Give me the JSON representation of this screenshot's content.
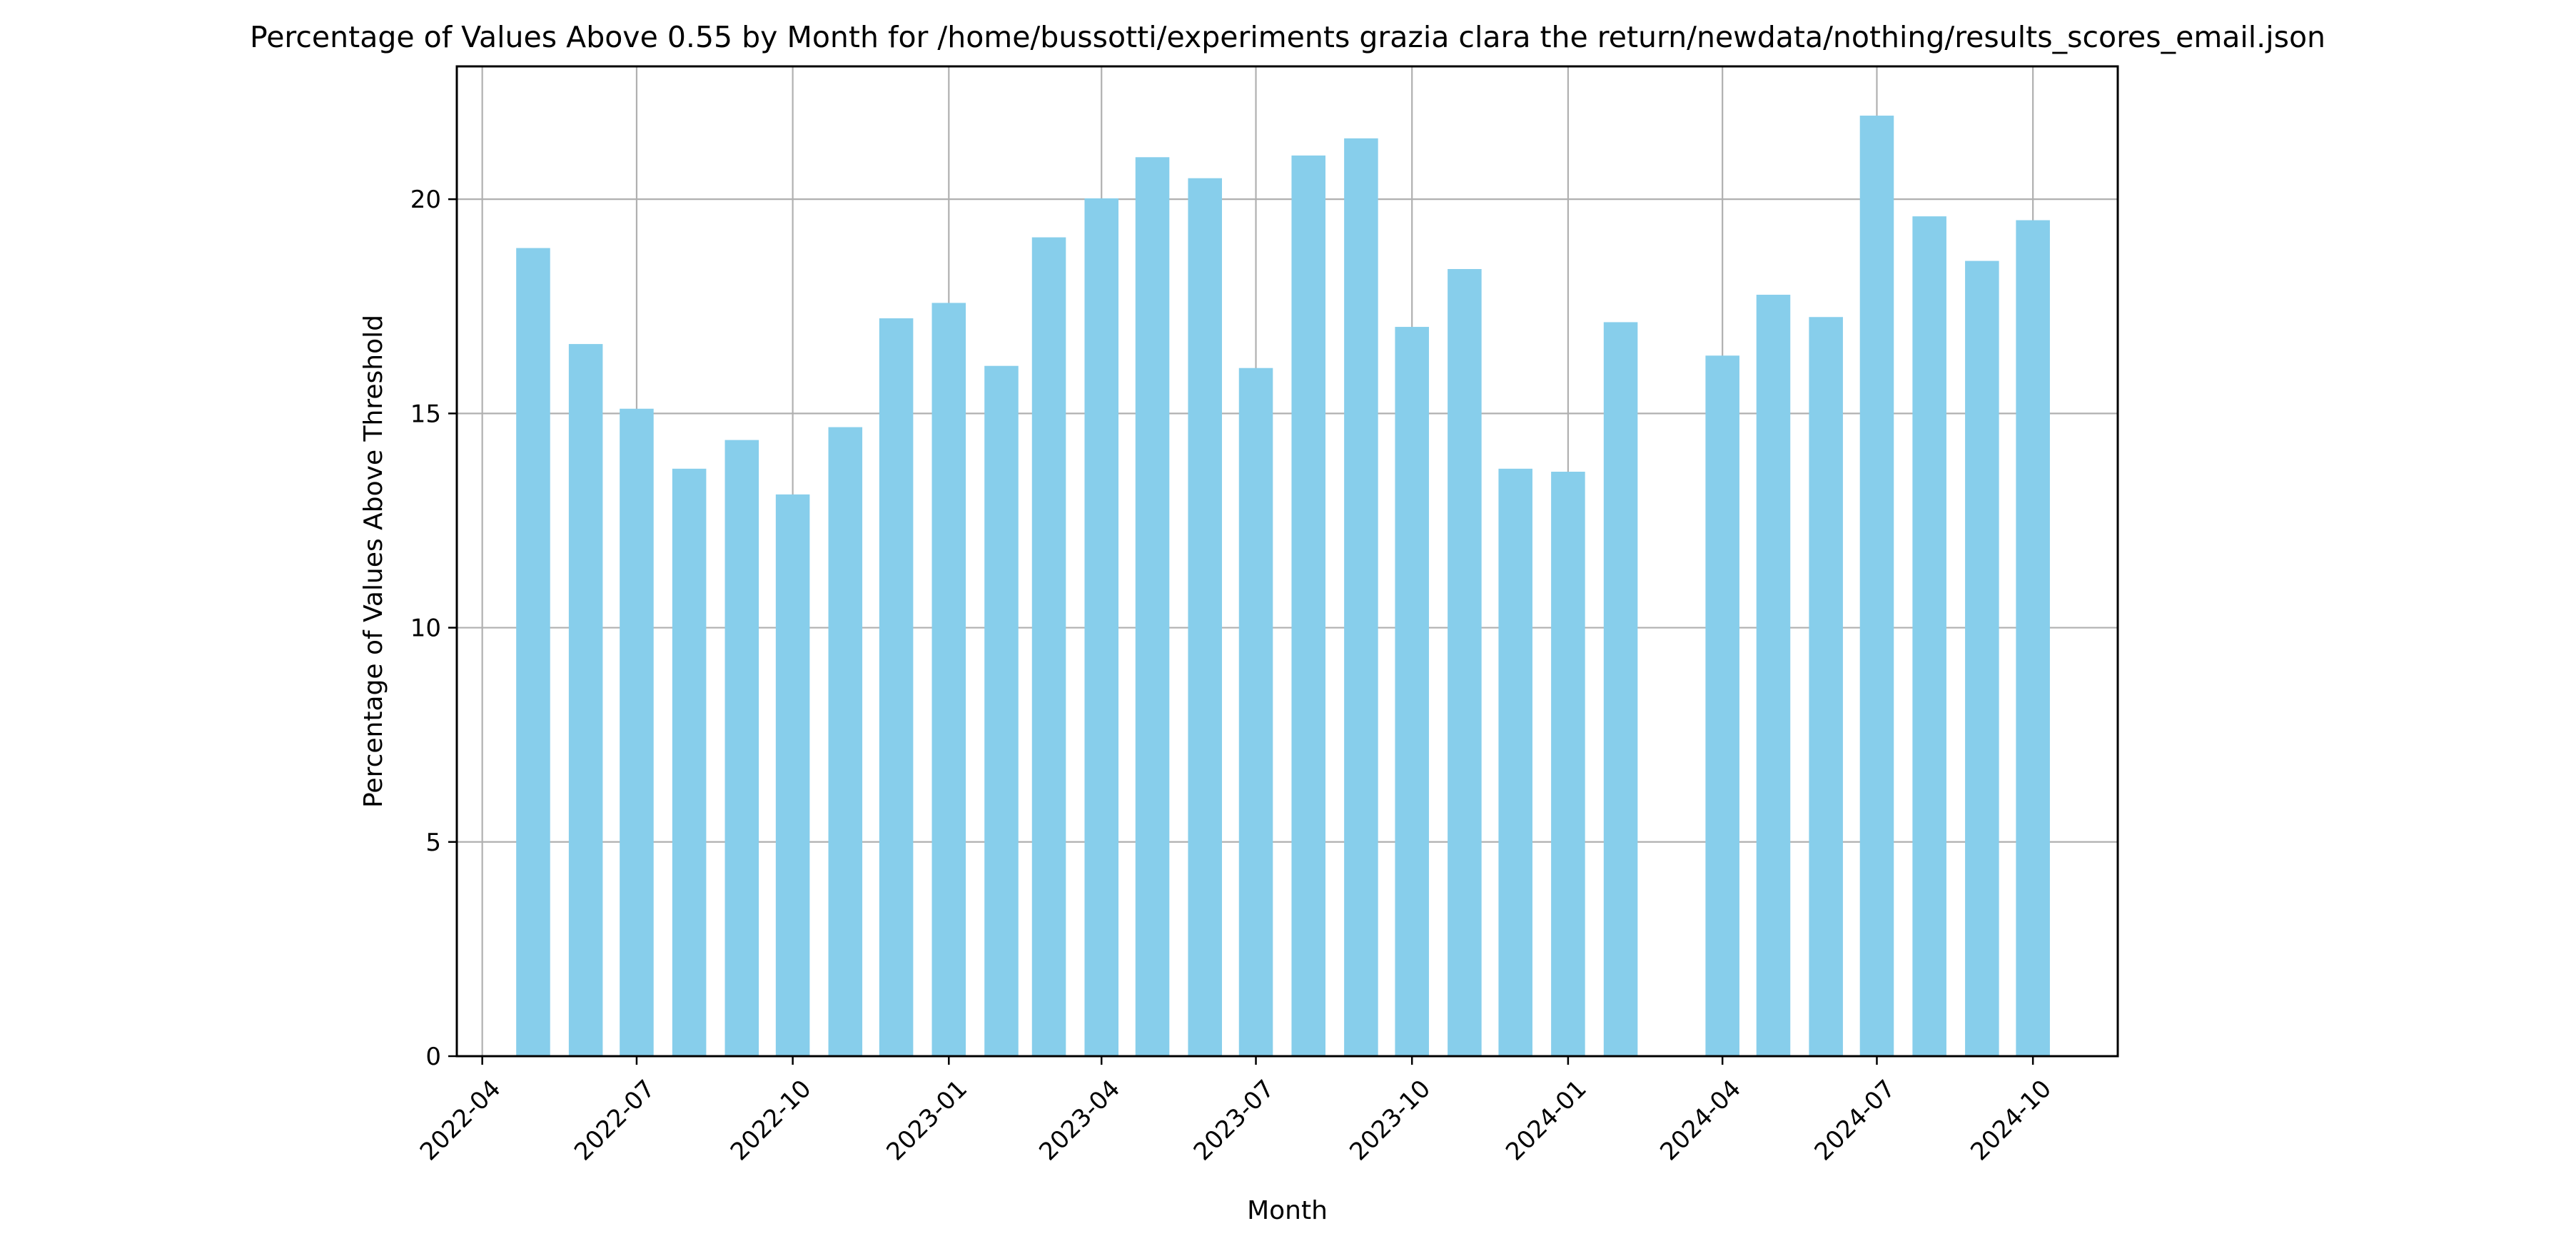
{
  "chart_data": {
    "type": "bar",
    "title": "Percentage of Values Above 0.55 by Month for /home/bussotti/experiments grazia clara the return/newdata/nothing/results_scores_email.json",
    "xlabel": "Month",
    "ylabel": "Percentage of Values Above Threshold",
    "ylim": [
      0,
      23.1
    ],
    "xlim": [
      "2022-03-17",
      "2024-11-20"
    ],
    "grid": true,
    "bar_color": "#87CEEB",
    "x_ticks": [
      "2022-04",
      "2022-07",
      "2022-10",
      "2023-01",
      "2023-04",
      "2023-07",
      "2023-10",
      "2024-01",
      "2024-04",
      "2024-07",
      "2024-10"
    ],
    "y_ticks": [
      0,
      5,
      10,
      15,
      20
    ],
    "x": [
      "2022-05",
      "2022-06",
      "2022-07",
      "2022-08",
      "2022-09",
      "2022-10",
      "2022-11",
      "2022-12",
      "2023-01",
      "2023-02",
      "2023-03",
      "2023-04",
      "2023-05",
      "2023-06",
      "2023-07",
      "2023-08",
      "2023-09",
      "2023-10",
      "2023-11",
      "2023-12",
      "2024-01",
      "2024-02",
      "2024-04",
      "2024-05",
      "2024-06",
      "2024-07",
      "2024-08",
      "2024-09",
      "2024-10"
    ],
    "values": [
      18.86,
      16.62,
      15.11,
      13.71,
      14.38,
      13.11,
      14.68,
      17.22,
      17.58,
      16.11,
      19.11,
      20.02,
      20.98,
      20.49,
      16.06,
      21.02,
      21.42,
      17.02,
      18.37,
      13.71,
      13.64,
      17.13,
      16.35,
      17.77,
      17.25,
      21.95,
      19.6,
      18.56,
      19.51
    ]
  }
}
